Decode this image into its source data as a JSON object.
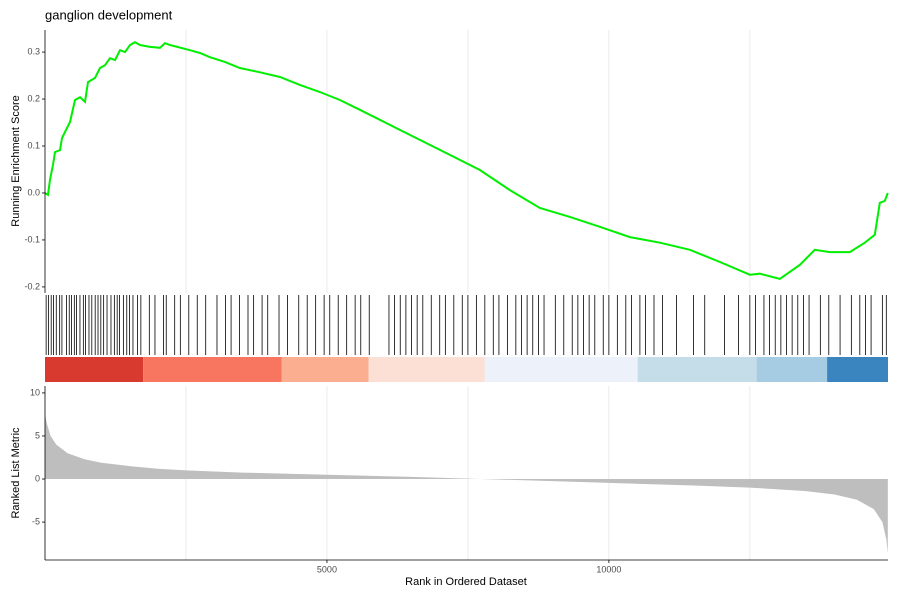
{
  "chart_data": [
    {
      "type": "line",
      "title": "ganglion development",
      "ylabel": "Running Enrichment Score",
      "color": "#00ee00",
      "xlim": [
        0,
        14950
      ],
      "xgrid": [
        2500,
        5000,
        7500,
        10000,
        12500
      ],
      "ylim": [
        -0.213,
        0.347
      ],
      "yticks": [
        -0.2,
        -0.1,
        {
          "value": 0,
          "label": "0.0"
        },
        0.1,
        0.2,
        0.3
      ],
      "x": [
        0,
        53,
        89,
        142,
        177,
        266,
        301,
        372,
        443,
        532,
        621,
        709,
        762,
        887,
        975,
        1064,
        1152,
        1241,
        1330,
        1418,
        1507,
        1596,
        1684,
        1862,
        2039,
        2128,
        2216,
        2571,
        2748,
        2926,
        3191,
        3457,
        3812,
        4167,
        4521,
        4876,
        5230,
        5585,
        6117,
        6649,
        7181,
        7713,
        8245,
        8777,
        9309,
        9840,
        10372,
        10904,
        11436,
        11968,
        12500,
        12677,
        13032,
        13387,
        13652,
        13918,
        14273,
        14539,
        14716,
        14805,
        14894,
        14947
      ],
      "values": [
        0,
        -0.004,
        0.028,
        0.06,
        0.087,
        0.091,
        0.117,
        0.134,
        0.151,
        0.198,
        0.204,
        0.194,
        0.236,
        0.245,
        0.266,
        0.272,
        0.287,
        0.283,
        0.304,
        0.3,
        0.315,
        0.321,
        0.315,
        0.311,
        0.309,
        0.319,
        0.315,
        0.304,
        0.298,
        0.289,
        0.279,
        0.266,
        0.257,
        0.247,
        0.23,
        0.215,
        0.198,
        0.177,
        0.145,
        0.113,
        0.081,
        0.049,
        0.006,
        -0.032,
        -0.051,
        -0.072,
        -0.094,
        -0.106,
        -0.121,
        -0.147,
        -0.174,
        -0.172,
        -0.183,
        -0.153,
        -0.121,
        -0.126,
        -0.126,
        -0.106,
        -0.089,
        -0.021,
        -0.017,
        0
      ]
    },
    {
      "type": "rug",
      "xlim": [
        0,
        14950
      ],
      "color": "#000000",
      "values": [
        20,
        60,
        110,
        150,
        200,
        260,
        300,
        380,
        430,
        470,
        520,
        560,
        620,
        680,
        720,
        780,
        830,
        890,
        940,
        990,
        1040,
        1100,
        1170,
        1230,
        1280,
        1320,
        1390,
        1450,
        1500,
        1560,
        1640,
        1700,
        1850,
        1950,
        2100,
        2150,
        2300,
        2400,
        2550,
        2700,
        2850,
        3050,
        3200,
        3300,
        3450,
        3600,
        3700,
        3850,
        3950,
        4150,
        4300,
        4500,
        4650,
        4800,
        4950,
        5050,
        5200,
        5350,
        5500,
        5600,
        5750,
        6100,
        6200,
        6300,
        6400,
        6500,
        6600,
        6700,
        6850,
        7000,
        7100,
        7250,
        7400,
        7500,
        7650,
        7800,
        7950,
        8050,
        8200,
        8350,
        8450,
        8550,
        8650,
        8750,
        8850,
        9050,
        9200,
        9350,
        9450,
        9550,
        9650,
        9750,
        9900,
        10000,
        10150,
        10300,
        10400,
        10550,
        10650,
        10800,
        10950,
        11200,
        11500,
        11700,
        12050,
        12300,
        12500,
        12600,
        12750,
        12850,
        12950,
        13050,
        13150,
        13250,
        13350,
        13450,
        13550,
        13750,
        13900,
        14100,
        14300,
        14450,
        14550,
        14650,
        14850,
        14920
      ],
      "bands": [
        {
          "start": 0,
          "end": 1740,
          "color": "#d93a2f"
        },
        {
          "start": 1740,
          "end": 4200,
          "color": "#f87660"
        },
        {
          "start": 4200,
          "end": 5740,
          "color": "#fcae91"
        },
        {
          "start": 5740,
          "end": 7800,
          "color": "#fde0d5"
        },
        {
          "start": 7800,
          "end": 10510,
          "color": "#edf1fa"
        },
        {
          "start": 10510,
          "end": 12620,
          "color": "#c5dce9"
        },
        {
          "start": 12620,
          "end": 13870,
          "color": "#a6cce3"
        },
        {
          "start": 13870,
          "end": 14950,
          "color": "#3a84bf"
        }
      ]
    },
    {
      "type": "area",
      "ylabel": "Ranked List Metric",
      "xlabel": "Rank in Ordered Dataset",
      "color": "#bebebe",
      "xlim": [
        0,
        14950
      ],
      "xticks": [
        5000,
        10000
      ],
      "xgrid": [
        2500,
        7500,
        12500
      ],
      "ylim": [
        -9.4,
        10.8
      ],
      "yticks": [
        -5,
        0,
        5,
        10
      ],
      "x": [
        0,
        30,
        100,
        200,
        400,
        700,
        1000,
        1500,
        2000,
        2500,
        3500,
        5000,
        6500,
        7500,
        8500,
        10000,
        11500,
        12500,
        13500,
        14000,
        14400,
        14700,
        14850,
        14920,
        14947
      ],
      "values": [
        7.6,
        6.5,
        5,
        4,
        3,
        2.3,
        1.9,
        1.5,
        1.2,
        1,
        0.75,
        0.5,
        0.25,
        0.05,
        -0.15,
        -0.45,
        -0.75,
        -1,
        -1.4,
        -1.8,
        -2.4,
        -3.5,
        -5,
        -7,
        -8.6
      ]
    }
  ]
}
